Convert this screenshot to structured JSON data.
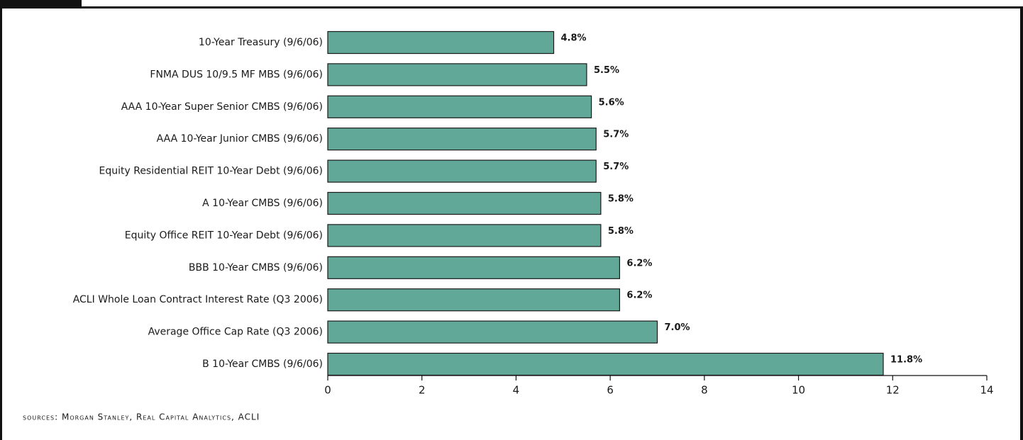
{
  "chart_data": {
    "type": "bar",
    "orientation": "horizontal",
    "categories": [
      "10-Year Treasury (9/6/06)",
      "FNMA DUS 10/9.5 MF MBS (9/6/06)",
      "AAA 10-Year Super Senior CMBS (9/6/06)",
      "AAA 10-Year Junior CMBS (9/6/06)",
      "Equity Residential REIT 10-Year Debt (9/6/06)",
      "A 10-Year CMBS (9/6/06)",
      "Equity Office REIT 10-Year Debt (9/6/06)",
      "BBB 10-Year CMBS (9/6/06)",
      "ACLI Whole Loan Contract Interest Rate (Q3 2006)",
      "Average Office Cap Rate (Q3 2006)",
      "B 10-Year CMBS (9/6/06)"
    ],
    "values": [
      4.8,
      5.5,
      5.6,
      5.7,
      5.7,
      5.8,
      5.8,
      6.2,
      6.2,
      7.0,
      11.8
    ],
    "value_labels": [
      "4.8%",
      "5.5%",
      "5.6%",
      "5.7%",
      "5.7%",
      "5.8%",
      "5.8%",
      "6.2%",
      "6.2%",
      "7.0%",
      "11.8%"
    ],
    "color": "#62a898",
    "xlim": [
      0,
      14
    ],
    "xticks": [
      0,
      2,
      4,
      6,
      8,
      10,
      12,
      14
    ],
    "source": "sources: Morgan Stanley, Real Capital Analytics, ACLI"
  }
}
